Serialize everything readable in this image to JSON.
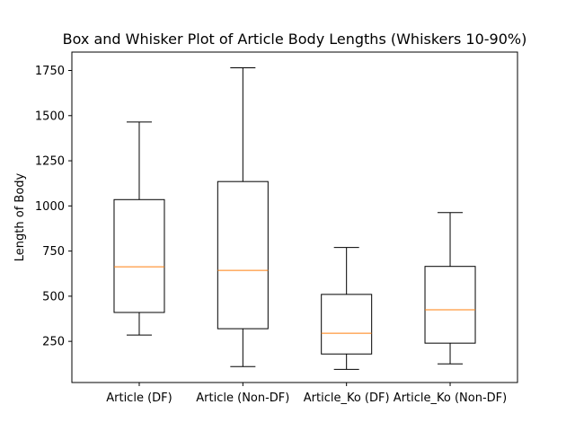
{
  "chart_data": {
    "type": "box",
    "title": "Box and Whisker Plot of Article Body Lengths (Whiskers 10-90%)",
    "xlabel": "",
    "ylabel": "Length of Body",
    "categories": [
      "Article (DF)",
      "Article (Non-DF)",
      "Article_Ko (DF)",
      "Article_Ko (Non-DF)"
    ],
    "boxes": [
      {
        "label": "Article (DF)",
        "whisker_low": 285,
        "q1": 410,
        "median": 663,
        "q3": 1035,
        "whisker_high": 1465
      },
      {
        "label": "Article (Non-DF)",
        "whisker_low": 110,
        "q1": 320,
        "median": 643,
        "q3": 1135,
        "whisker_high": 1765
      },
      {
        "label": "Article_Ko (DF)",
        "whisker_low": 95,
        "q1": 180,
        "median": 295,
        "q3": 510,
        "whisker_high": 770
      },
      {
        "label": "Article_Ko (Non-DF)",
        "whisker_low": 125,
        "q1": 240,
        "median": 425,
        "q3": 665,
        "whisker_high": 963
      }
    ],
    "yticks": [
      250,
      500,
      750,
      1000,
      1250,
      1500,
      1750
    ],
    "ylim": [
      22,
      1852
    ],
    "grid": false,
    "colors": {
      "box": "#000000",
      "median": "#ff7f0e"
    }
  }
}
